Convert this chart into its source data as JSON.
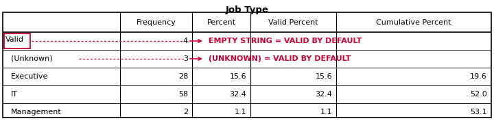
{
  "title": "Job Type",
  "title_fontsize": 9.5,
  "title_fontweight": "bold",
  "headers": [
    "",
    "Frequency",
    "Percent",
    "Valid Percent",
    "Cumulative Percent"
  ],
  "rows": [
    [
      "",
      "4",
      "",
      "",
      ""
    ],
    [
      "(Unknown)",
      "3",
      "",
      "",
      ""
    ],
    [
      "Executive",
      "28",
      "15.6",
      "15.6",
      "19.6"
    ],
    [
      "IT",
      "58",
      "32.4",
      "32.4",
      "52.0"
    ],
    [
      "Management",
      "2",
      "1.1",
      "1.1",
      "53.1"
    ]
  ],
  "valid_label": "Valid",
  "annotation1": " EMPTY STRING = VALID BY DEFAULT",
  "annotation2": " (UNKNOWN) = VALID BY DEFAULT",
  "annotation_color": "#CC0033",
  "bg_color": "#ffffff",
  "border_color": "#000000",
  "valid_box_color": "#CC0033",
  "font_size": 8.0,
  "ann_font_size": 8.0
}
